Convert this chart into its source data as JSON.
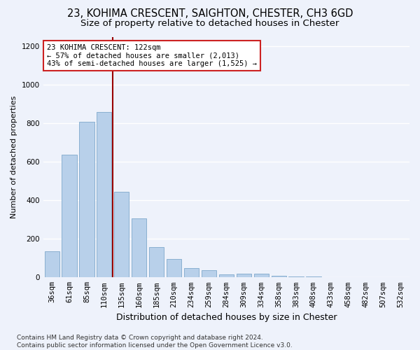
{
  "title1": "23, KOHIMA CRESCENT, SAIGHTON, CHESTER, CH3 6GD",
  "title2": "Size of property relative to detached houses in Chester",
  "xlabel": "Distribution of detached houses by size in Chester",
  "ylabel": "Number of detached properties",
  "categories": [
    "36sqm",
    "61sqm",
    "85sqm",
    "110sqm",
    "135sqm",
    "160sqm",
    "185sqm",
    "210sqm",
    "234sqm",
    "259sqm",
    "284sqm",
    "309sqm",
    "334sqm",
    "358sqm",
    "383sqm",
    "408sqm",
    "433sqm",
    "458sqm",
    "482sqm",
    "507sqm",
    "532sqm"
  ],
  "values": [
    135,
    638,
    808,
    858,
    445,
    305,
    158,
    95,
    50,
    38,
    15,
    20,
    18,
    10,
    5,
    3,
    2,
    2,
    0,
    0,
    0
  ],
  "bar_color": "#b8d0ea",
  "bar_edge_color": "#8ab0d0",
  "vline_color": "#990000",
  "annotation_text": "23 KOHIMA CRESCENT: 122sqm\n← 57% of detached houses are smaller (2,013)\n43% of semi-detached houses are larger (1,525) →",
  "annotation_box_color": "#ffffff",
  "annotation_box_edge": "#cc2222",
  "ylim": [
    0,
    1250
  ],
  "yticks": [
    0,
    200,
    400,
    600,
    800,
    1000,
    1200
  ],
  "footnote": "Contains HM Land Registry data © Crown copyright and database right 2024.\nContains public sector information licensed under the Open Government Licence v3.0.",
  "background_color": "#eef2fb",
  "grid_color": "#ffffff",
  "title1_fontsize": 10.5,
  "title2_fontsize": 9.5,
  "xlabel_fontsize": 9,
  "ylabel_fontsize": 8,
  "tick_fontsize": 7.5,
  "annot_fontsize": 7.5,
  "footnote_fontsize": 6.5
}
